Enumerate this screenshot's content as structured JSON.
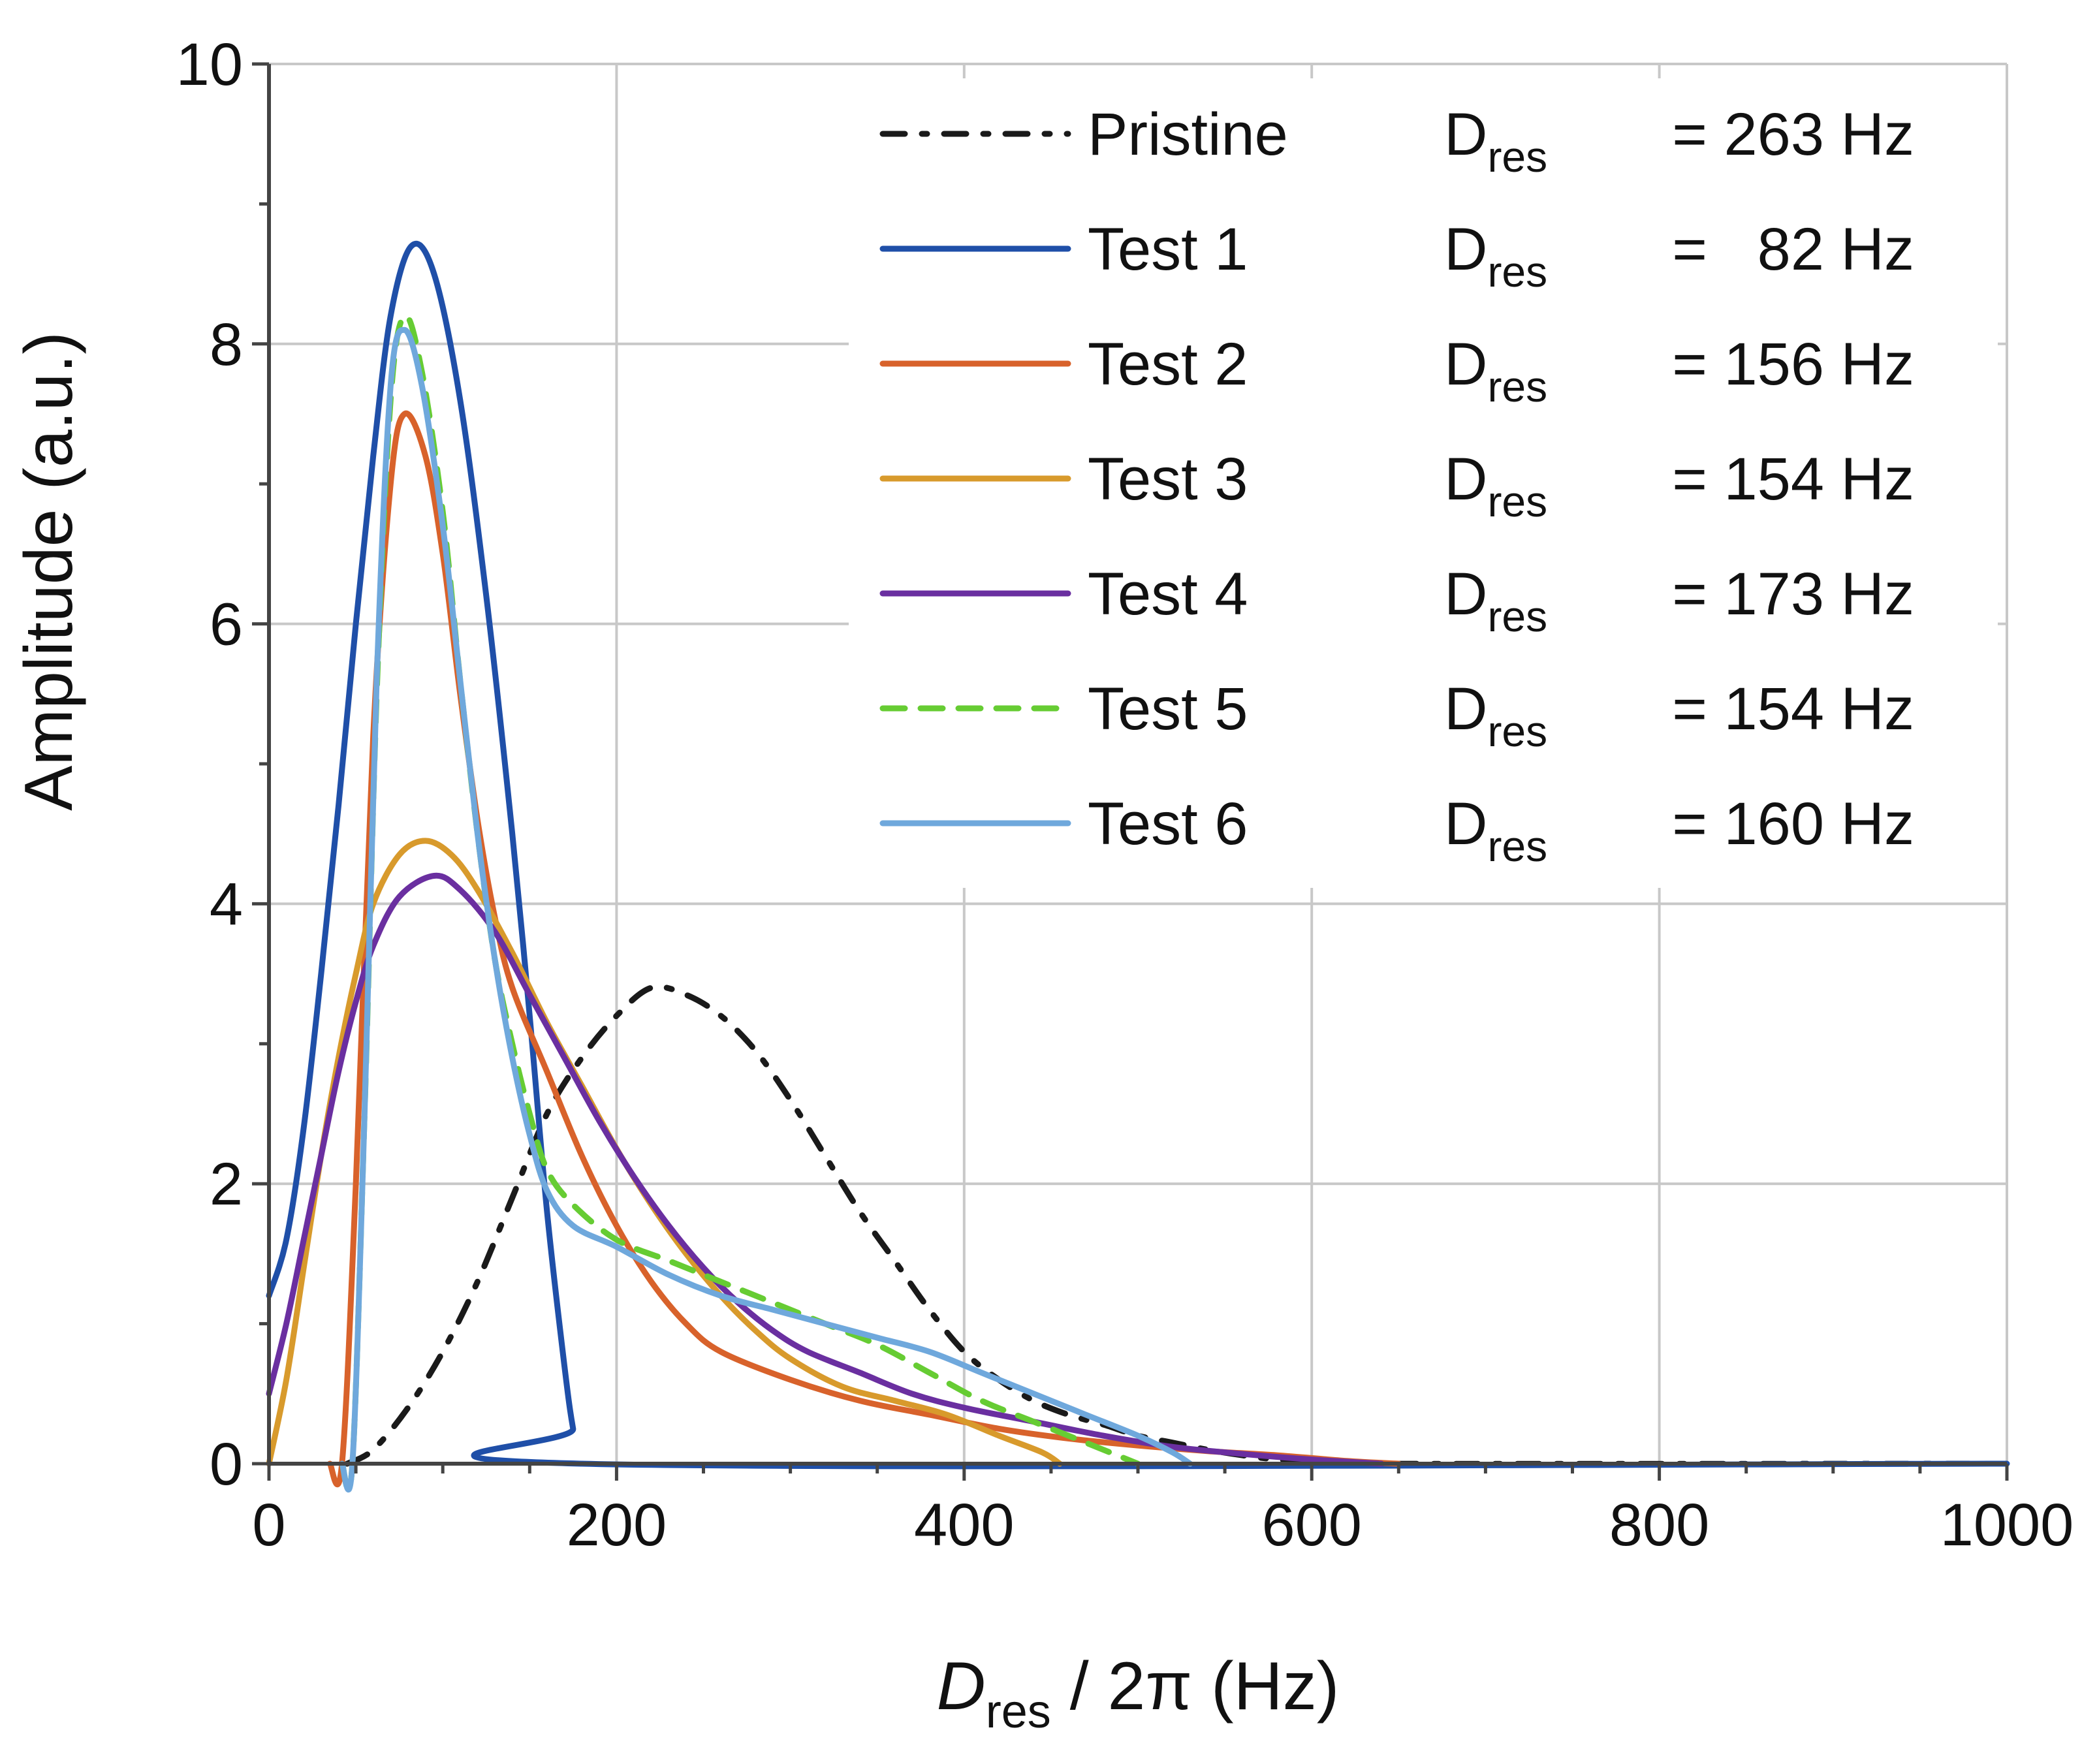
{
  "chart_data": {
    "type": "line",
    "xlabel": {
      "symbol": "D",
      "subscript": "res",
      "rest": " / 2π (Hz)"
    },
    "ylabel": "Amplitude (a.u.)",
    "xlim": [
      0,
      1000
    ],
    "ylim": [
      0,
      10
    ],
    "xticks": [
      "0",
      "200",
      "400",
      "600",
      "800",
      "1000"
    ],
    "yticks": [
      "0",
      "2",
      "4",
      "6",
      "8",
      "10"
    ],
    "grid": true,
    "legend_position": "top-right",
    "series": [
      {
        "name": "Pristine",
        "dres_symbol": "D",
        "dres_sub": "res",
        "dres_value": "= 263 Hz",
        "color": "#1a1a1a",
        "style": "dashdot",
        "points": [
          [
            45,
            0
          ],
          [
            60,
            0.1
          ],
          [
            80,
            0.4
          ],
          [
            100,
            0.8
          ],
          [
            120,
            1.3
          ],
          [
            140,
            1.9
          ],
          [
            160,
            2.5
          ],
          [
            180,
            2.9
          ],
          [
            200,
            3.2
          ],
          [
            220,
            3.4
          ],
          [
            240,
            3.35
          ],
          [
            260,
            3.2
          ],
          [
            280,
            2.95
          ],
          [
            300,
            2.6
          ],
          [
            320,
            2.2
          ],
          [
            340,
            1.8
          ],
          [
            360,
            1.45
          ],
          [
            380,
            1.1
          ],
          [
            400,
            0.8
          ],
          [
            420,
            0.6
          ],
          [
            440,
            0.45
          ],
          [
            460,
            0.35
          ],
          [
            480,
            0.28
          ],
          [
            500,
            0.2
          ],
          [
            520,
            0.15
          ],
          [
            540,
            0.1
          ],
          [
            560,
            0.06
          ],
          [
            580,
            0.03
          ],
          [
            600,
            0.02
          ],
          [
            640,
            0
          ],
          [
            1000,
            0
          ]
        ]
      },
      {
        "name": "Test 1",
        "dres_symbol": "D",
        "dres_sub": "res",
        "dres_value": "=   82 Hz",
        "color": "#1f4fa8",
        "style": "solid",
        "points": [
          [
            0,
            1.2
          ],
          [
            10,
            1.6
          ],
          [
            20,
            2.4
          ],
          [
            30,
            3.5
          ],
          [
            40,
            4.7
          ],
          [
            50,
            6
          ],
          [
            60,
            7.2
          ],
          [
            70,
            8.2
          ],
          [
            82,
            8.7
          ],
          [
            95,
            8.5
          ],
          [
            110,
            7.6
          ],
          [
            125,
            6.2
          ],
          [
            140,
            4.5
          ],
          [
            150,
            3.2
          ],
          [
            160,
            1.8
          ],
          [
            170,
            0.7
          ],
          [
            175,
            0.25
          ],
          [
            180,
            0
          ],
          [
            1000,
            0
          ]
        ]
      },
      {
        "name": "Test 2",
        "dres_symbol": "D",
        "dres_sub": "res",
        "dres_value": "= 156 Hz",
        "color": "#d8622b",
        "style": "solid",
        "points": [
          [
            35,
            0
          ],
          [
            42,
            0
          ],
          [
            50,
            2
          ],
          [
            60,
            5.2
          ],
          [
            70,
            7
          ],
          [
            78,
            7.5
          ],
          [
            90,
            7.2
          ],
          [
            100,
            6.5
          ],
          [
            110,
            5.5
          ],
          [
            120,
            4.6
          ],
          [
            130,
            3.9
          ],
          [
            140,
            3.4
          ],
          [
            160,
            2.8
          ],
          [
            180,
            2.2
          ],
          [
            200,
            1.7
          ],
          [
            220,
            1.3
          ],
          [
            240,
            1.0
          ],
          [
            260,
            0.8
          ],
          [
            300,
            0.6
          ],
          [
            340,
            0.45
          ],
          [
            380,
            0.35
          ],
          [
            420,
            0.25
          ],
          [
            460,
            0.18
          ],
          [
            500,
            0.13
          ],
          [
            540,
            0.09
          ],
          [
            580,
            0.06
          ],
          [
            620,
            0.02
          ],
          [
            650,
            0
          ]
        ]
      },
      {
        "name": "Test 3",
        "dres_symbol": "D",
        "dres_sub": "res",
        "dres_value": "= 154 Hz",
        "color": "#d89a2c",
        "style": "solid",
        "points": [
          [
            0,
            0
          ],
          [
            10,
            0.6
          ],
          [
            20,
            1.4
          ],
          [
            30,
            2.2
          ],
          [
            40,
            2.9
          ],
          [
            50,
            3.5
          ],
          [
            60,
            4.0
          ],
          [
            75,
            4.35
          ],
          [
            90,
            4.45
          ],
          [
            105,
            4.35
          ],
          [
            120,
            4.1
          ],
          [
            140,
            3.65
          ],
          [
            160,
            3.15
          ],
          [
            180,
            2.7
          ],
          [
            200,
            2.25
          ],
          [
            220,
            1.85
          ],
          [
            240,
            1.5
          ],
          [
            260,
            1.2
          ],
          [
            280,
            0.95
          ],
          [
            300,
            0.75
          ],
          [
            330,
            0.55
          ],
          [
            360,
            0.45
          ],
          [
            390,
            0.35
          ],
          [
            420,
            0.2
          ],
          [
            445,
            0.08
          ],
          [
            455,
            0
          ]
        ]
      },
      {
        "name": "Test 4",
        "dres_symbol": "D",
        "dres_sub": "res",
        "dres_value": "= 173 Hz",
        "color": "#6a2fa0",
        "style": "solid",
        "points": [
          [
            0,
            0.5
          ],
          [
            10,
            1.0
          ],
          [
            20,
            1.6
          ],
          [
            30,
            2.2
          ],
          [
            40,
            2.8
          ],
          [
            50,
            3.3
          ],
          [
            60,
            3.7
          ],
          [
            75,
            4.05
          ],
          [
            95,
            4.2
          ],
          [
            110,
            4.1
          ],
          [
            130,
            3.8
          ],
          [
            150,
            3.35
          ],
          [
            170,
            2.9
          ],
          [
            190,
            2.45
          ],
          [
            210,
            2.05
          ],
          [
            230,
            1.7
          ],
          [
            250,
            1.4
          ],
          [
            270,
            1.15
          ],
          [
            290,
            0.95
          ],
          [
            310,
            0.8
          ],
          [
            340,
            0.65
          ],
          [
            370,
            0.5
          ],
          [
            400,
            0.4
          ],
          [
            440,
            0.3
          ],
          [
            480,
            0.2
          ],
          [
            520,
            0.12
          ],
          [
            560,
            0.07
          ],
          [
            600,
            0.03
          ],
          [
            640,
            0
          ]
        ]
      },
      {
        "name": "Test 5",
        "dres_symbol": "D",
        "dres_sub": "res",
        "dres_value": "= 154 Hz",
        "color": "#66cc33",
        "style": "dashed",
        "points": [
          [
            42,
            0
          ],
          [
            48,
            0
          ],
          [
            55,
            2.5
          ],
          [
            62,
            5.5
          ],
          [
            70,
            7.6
          ],
          [
            78,
            8.2
          ],
          [
            88,
            7.8
          ],
          [
            100,
            6.8
          ],
          [
            110,
            5.6
          ],
          [
            120,
            4.5
          ],
          [
            130,
            3.6
          ],
          [
            140,
            3.0
          ],
          [
            150,
            2.5
          ],
          [
            160,
            2.1
          ],
          [
            175,
            1.85
          ],
          [
            200,
            1.6
          ],
          [
            230,
            1.45
          ],
          [
            260,
            1.3
          ],
          [
            290,
            1.15
          ],
          [
            320,
            1.0
          ],
          [
            350,
            0.85
          ],
          [
            380,
            0.65
          ],
          [
            410,
            0.45
          ],
          [
            440,
            0.3
          ],
          [
            470,
            0.15
          ],
          [
            490,
            0.05
          ],
          [
            500,
            0
          ]
        ]
      },
      {
        "name": "Test 6",
        "dres_symbol": "D",
        "dres_sub": "res",
        "dres_value": "= 160 Hz",
        "color": "#6fa8dc",
        "style": "solid",
        "points": [
          [
            42,
            0
          ],
          [
            48,
            0
          ],
          [
            55,
            2.5
          ],
          [
            62,
            5.6
          ],
          [
            70,
            7.7
          ],
          [
            78,
            8.1
          ],
          [
            88,
            7.7
          ],
          [
            100,
            6.7
          ],
          [
            110,
            5.6
          ],
          [
            120,
            4.5
          ],
          [
            130,
            3.6
          ],
          [
            140,
            2.9
          ],
          [
            150,
            2.35
          ],
          [
            160,
            1.95
          ],
          [
            175,
            1.7
          ],
          [
            200,
            1.55
          ],
          [
            230,
            1.35
          ],
          [
            260,
            1.2
          ],
          [
            290,
            1.1
          ],
          [
            320,
            1.0
          ],
          [
            350,
            0.9
          ],
          [
            380,
            0.8
          ],
          [
            410,
            0.65
          ],
          [
            440,
            0.5
          ],
          [
            470,
            0.35
          ],
          [
            500,
            0.2
          ],
          [
            520,
            0.08
          ],
          [
            530,
            0
          ]
        ]
      }
    ]
  }
}
